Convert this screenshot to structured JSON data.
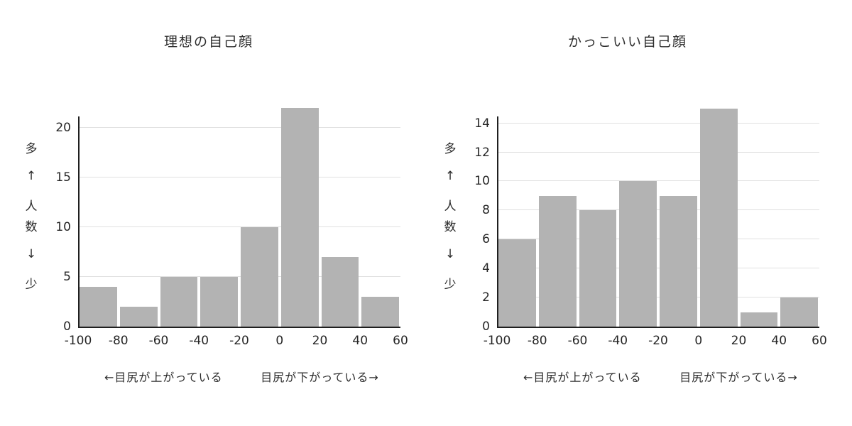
{
  "colors": {
    "bar": "#b3b3b3",
    "gridline": "#e0e0e0",
    "axis": "#1f1f1f",
    "text": "#2b2b2b",
    "background": "#ffffff"
  },
  "chart_data": [
    {
      "type": "bar",
      "title": "理想の自己顔",
      "ylabel_vertical_chars": [
        "多",
        "↑",
        "人",
        "数",
        "↓",
        "少"
      ],
      "bin_edges": [
        -100,
        -80,
        -60,
        -40,
        -20,
        0,
        20,
        40,
        60
      ],
      "values": [
        4,
        2,
        5,
        5,
        10,
        22,
        7,
        3
      ],
      "yticks": [
        0,
        5,
        10,
        15,
        20
      ],
      "ylim": [
        0,
        22.5
      ],
      "xlim": [
        -100,
        60
      ],
      "grid": "horizontal",
      "legend": "none",
      "annotation_left": "←目尻が上がっている",
      "annotation_right": "目尻が下がっている→"
    },
    {
      "type": "bar",
      "title": "かっこいい自己顔",
      "ylabel_vertical_chars": [
        "多",
        "↑",
        "人",
        "数",
        "↓",
        "少"
      ],
      "bin_edges": [
        -100,
        -80,
        -60,
        -40,
        -20,
        0,
        20,
        40,
        60
      ],
      "values": [
        6,
        9,
        8,
        10,
        9,
        15,
        1,
        2
      ],
      "yticks": [
        0,
        2,
        4,
        6,
        8,
        10,
        12,
        14
      ],
      "ylim": [
        0,
        15.4
      ],
      "xlim": [
        -100,
        60
      ],
      "grid": "horizontal",
      "legend": "none",
      "annotation_left": "←目尻が上がっている",
      "annotation_right": "目尻が下がっている→"
    }
  ]
}
